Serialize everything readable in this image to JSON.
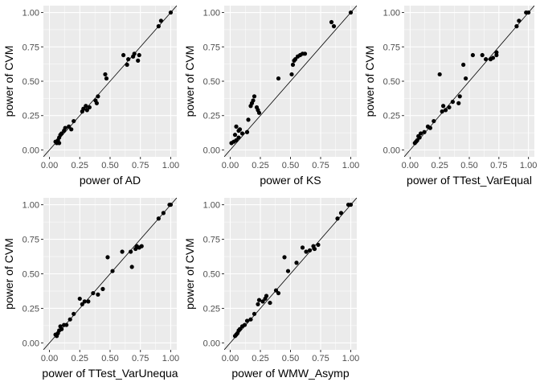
{
  "colors": {
    "panel_background": "#ebebeb",
    "gridline_major": "#ffffff",
    "point": "#000000",
    "identity_line": "#000000",
    "tick_label": "#4d4d4d"
  },
  "chart_data": [
    {
      "type": "scatter",
      "xlabel": "power of AD",
      "ylabel": "power of CVM",
      "xlim": [
        -0.05,
        1.05
      ],
      "ylim": [
        -0.05,
        1.05
      ],
      "xticks": [
        "0.00",
        "0.25",
        "0.50",
        "0.75",
        "1.00"
      ],
      "yticks": [
        "0.00",
        "0.25",
        "0.50",
        "0.75",
        "1.00"
      ],
      "reference_line": "y = x",
      "grid": true,
      "points": [
        [
          0.05,
          0.06
        ],
        [
          0.06,
          0.05
        ],
        [
          0.07,
          0.07
        ],
        [
          0.08,
          0.05
        ],
        [
          0.08,
          0.09
        ],
        [
          0.09,
          0.11
        ],
        [
          0.1,
          0.12
        ],
        [
          0.12,
          0.14
        ],
        [
          0.13,
          0.16
        ],
        [
          0.16,
          0.17
        ],
        [
          0.18,
          0.15
        ],
        [
          0.2,
          0.21
        ],
        [
          0.27,
          0.28
        ],
        [
          0.28,
          0.3
        ],
        [
          0.3,
          0.32
        ],
        [
          0.31,
          0.29
        ],
        [
          0.33,
          0.31
        ],
        [
          0.38,
          0.36
        ],
        [
          0.39,
          0.34
        ],
        [
          0.4,
          0.39
        ],
        [
          0.46,
          0.55
        ],
        [
          0.47,
          0.52
        ],
        [
          0.61,
          0.69
        ],
        [
          0.64,
          0.62
        ],
        [
          0.65,
          0.66
        ],
        [
          0.69,
          0.68
        ],
        [
          0.7,
          0.7
        ],
        [
          0.73,
          0.65
        ],
        [
          0.74,
          0.69
        ],
        [
          0.9,
          0.9
        ],
        [
          0.92,
          0.94
        ],
        [
          1.0,
          1.0
        ]
      ]
    },
    {
      "type": "scatter",
      "xlabel": "power of KS",
      "ylabel": "power of CVM",
      "xlim": [
        -0.05,
        1.05
      ],
      "ylim": [
        -0.05,
        1.05
      ],
      "xticks": [
        "0.00",
        "0.25",
        "0.50",
        "0.75",
        "1.00"
      ],
      "yticks": [
        "0.00",
        "0.25",
        "0.50",
        "0.75",
        "1.00"
      ],
      "reference_line": "y = x",
      "grid": true,
      "points": [
        [
          0.01,
          0.05
        ],
        [
          0.03,
          0.06
        ],
        [
          0.04,
          0.11
        ],
        [
          0.05,
          0.07
        ],
        [
          0.05,
          0.17
        ],
        [
          0.07,
          0.09
        ],
        [
          0.07,
          0.14
        ],
        [
          0.08,
          0.15
        ],
        [
          0.1,
          0.12
        ],
        [
          0.14,
          0.13
        ],
        [
          0.15,
          0.22
        ],
        [
          0.17,
          0.32
        ],
        [
          0.18,
          0.34
        ],
        [
          0.19,
          0.36
        ],
        [
          0.2,
          0.39
        ],
        [
          0.22,
          0.31
        ],
        [
          0.23,
          0.29
        ],
        [
          0.24,
          0.27
        ],
        [
          0.4,
          0.52
        ],
        [
          0.51,
          0.55
        ],
        [
          0.52,
          0.62
        ],
        [
          0.53,
          0.65
        ],
        [
          0.54,
          0.66
        ],
        [
          0.56,
          0.68
        ],
        [
          0.58,
          0.69
        ],
        [
          0.6,
          0.7
        ],
        [
          0.62,
          0.7
        ],
        [
          0.84,
          0.93
        ],
        [
          0.86,
          0.9
        ],
        [
          1.0,
          1.0
        ]
      ]
    },
    {
      "type": "scatter",
      "xlabel": "power of TTest_VarEqual",
      "ylabel": "power of CVM",
      "xlim": [
        -0.05,
        1.05
      ],
      "ylim": [
        -0.05,
        1.05
      ],
      "xticks": [
        "0.00",
        "0.25",
        "0.50",
        "0.75",
        "1.00"
      ],
      "yticks": [
        "0.00",
        "0.25",
        "0.50",
        "0.75",
        "1.00"
      ],
      "reference_line": "y = x",
      "grid": true,
      "points": [
        [
          0.04,
          0.05
        ],
        [
          0.05,
          0.06
        ],
        [
          0.06,
          0.07
        ],
        [
          0.07,
          0.1
        ],
        [
          0.08,
          0.09
        ],
        [
          0.09,
          0.12
        ],
        [
          0.12,
          0.13
        ],
        [
          0.15,
          0.17
        ],
        [
          0.17,
          0.16
        ],
        [
          0.2,
          0.21
        ],
        [
          0.25,
          0.55
        ],
        [
          0.27,
          0.28
        ],
        [
          0.28,
          0.32
        ],
        [
          0.3,
          0.29
        ],
        [
          0.33,
          0.31
        ],
        [
          0.36,
          0.35
        ],
        [
          0.41,
          0.34
        ],
        [
          0.42,
          0.39
        ],
        [
          0.45,
          0.62
        ],
        [
          0.47,
          0.52
        ],
        [
          0.53,
          0.69
        ],
        [
          0.61,
          0.69
        ],
        [
          0.64,
          0.66
        ],
        [
          0.68,
          0.66
        ],
        [
          0.7,
          0.67
        ],
        [
          0.73,
          0.69
        ],
        [
          0.73,
          0.71
        ],
        [
          0.9,
          0.9
        ],
        [
          0.92,
          0.94
        ],
        [
          0.98,
          1.0
        ],
        [
          1.0,
          1.0
        ]
      ]
    },
    {
      "type": "scatter",
      "xlabel": "power of TTest_VarUnequa",
      "ylabel": "power of CVM",
      "xlim": [
        -0.05,
        1.05
      ],
      "ylim": [
        -0.05,
        1.05
      ],
      "xticks": [
        "0.00",
        "0.25",
        "0.50",
        "0.75",
        "1.00"
      ],
      "yticks": [
        "0.00",
        "0.25",
        "0.50",
        "0.75",
        "1.00"
      ],
      "reference_line": "y = x",
      "grid": true,
      "points": [
        [
          0.05,
          0.06
        ],
        [
          0.06,
          0.05
        ],
        [
          0.07,
          0.07
        ],
        [
          0.08,
          0.09
        ],
        [
          0.09,
          0.12
        ],
        [
          0.1,
          0.1
        ],
        [
          0.12,
          0.13
        ],
        [
          0.14,
          0.13
        ],
        [
          0.17,
          0.17
        ],
        [
          0.2,
          0.21
        ],
        [
          0.25,
          0.32
        ],
        [
          0.27,
          0.28
        ],
        [
          0.29,
          0.3
        ],
        [
          0.32,
          0.3
        ],
        [
          0.36,
          0.36
        ],
        [
          0.4,
          0.35
        ],
        [
          0.44,
          0.39
        ],
        [
          0.48,
          0.62
        ],
        [
          0.52,
          0.52
        ],
        [
          0.6,
          0.66
        ],
        [
          0.67,
          0.66
        ],
        [
          0.68,
          0.55
        ],
        [
          0.71,
          0.68
        ],
        [
          0.72,
          0.7
        ],
        [
          0.74,
          0.69
        ],
        [
          0.76,
          0.7
        ],
        [
          0.9,
          0.9
        ],
        [
          0.94,
          0.94
        ],
        [
          0.99,
          1.0
        ],
        [
          1.0,
          1.0
        ]
      ]
    },
    {
      "type": "scatter",
      "xlabel": "power of WMW_Asymp",
      "ylabel": "power of CVM",
      "xlim": [
        -0.05,
        1.05
      ],
      "ylim": [
        -0.05,
        1.05
      ],
      "xticks": [
        "0.00",
        "0.25",
        "0.50",
        "0.75",
        "1.00"
      ],
      "yticks": [
        "0.00",
        "0.25",
        "0.50",
        "0.75",
        "1.00"
      ],
      "reference_line": "y = x",
      "grid": true,
      "points": [
        [
          0.04,
          0.05
        ],
        [
          0.05,
          0.06
        ],
        [
          0.06,
          0.07
        ],
        [
          0.07,
          0.09
        ],
        [
          0.08,
          0.1
        ],
        [
          0.1,
          0.12
        ],
        [
          0.12,
          0.13
        ],
        [
          0.14,
          0.16
        ],
        [
          0.17,
          0.17
        ],
        [
          0.2,
          0.21
        ],
        [
          0.23,
          0.28
        ],
        [
          0.24,
          0.31
        ],
        [
          0.27,
          0.3
        ],
        [
          0.29,
          0.32
        ],
        [
          0.3,
          0.34
        ],
        [
          0.33,
          0.29
        ],
        [
          0.38,
          0.38
        ],
        [
          0.4,
          0.36
        ],
        [
          0.45,
          0.62
        ],
        [
          0.48,
          0.52
        ],
        [
          0.55,
          0.58
        ],
        [
          0.6,
          0.69
        ],
        [
          0.63,
          0.66
        ],
        [
          0.66,
          0.67
        ],
        [
          0.69,
          0.7
        ],
        [
          0.7,
          0.68
        ],
        [
          0.73,
          0.71
        ],
        [
          0.89,
          0.9
        ],
        [
          0.92,
          0.94
        ],
        [
          0.98,
          1.0
        ],
        [
          1.0,
          1.0
        ]
      ]
    }
  ]
}
